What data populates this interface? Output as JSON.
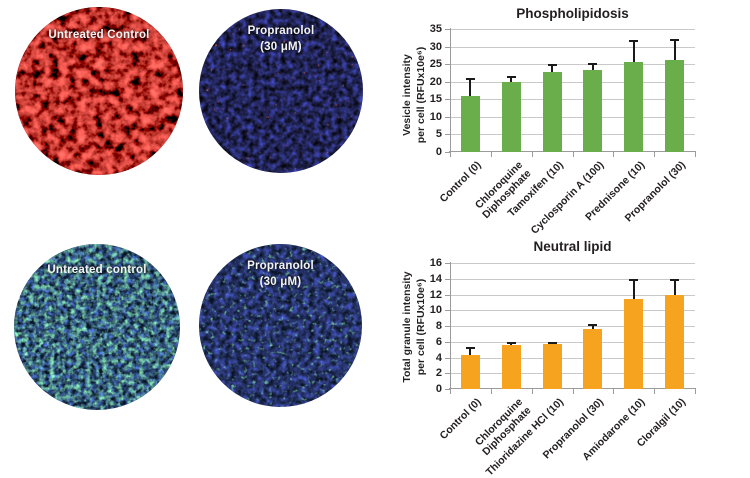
{
  "panels": {
    "phospholipidosis_images": {
      "image1_label": "Untreated Control",
      "image2_label": "Propranolol\n(30 μM)"
    },
    "neutral_lipid_images": {
      "image1_label": "Untreated control",
      "image2_label": "Propranolol\n(30 μM)"
    }
  },
  "chart_data": [
    {
      "type": "bar",
      "title": "Phospholipidosis",
      "ylabel": "Vesicle intensity\nper cell (RFUx10e⁶)",
      "xlabel": "",
      "categories": [
        "Control (0)",
        "Chloroquine\nDiphosphate",
        "Tamoxifen (10)",
        "Cyclosporin A (100)",
        "Prednisone (10)",
        "Propranolol (30)"
      ],
      "values": [
        16,
        20,
        22.8,
        23.3,
        25.6,
        26.3
      ],
      "errors_up": [
        4.9,
        1.3,
        2.1,
        1.8,
        6.1,
        5.6
      ],
      "ylim": [
        0,
        35
      ],
      "ytick_step": 5,
      "yticks": [
        0,
        5,
        10,
        15,
        20,
        25,
        30,
        35
      ],
      "bar_color": "#6aad4b",
      "grid": true,
      "legend": "none"
    },
    {
      "type": "bar",
      "title": "Neutral lipid",
      "ylabel": "Total granule intensity\nper cell (RFUx10e⁶)",
      "xlabel": "",
      "categories": [
        "Control (0)",
        "Chloroquine\nDiphosphate",
        "Thioridazine HCl (10)",
        "Propranolol (30)",
        "Amiodarone (10)",
        "Cloralgil (10)"
      ],
      "values": [
        4.3,
        5.6,
        5.7,
        7.6,
        11.4,
        12.0
      ],
      "errors_up": [
        0.9,
        0.2,
        0.2,
        0.5,
        2.5,
        1.8
      ],
      "ylim": [
        0,
        16
      ],
      "ytick_step": 2,
      "yticks": [
        0,
        2,
        4,
        6,
        8,
        10,
        12,
        14,
        16
      ],
      "bar_color": "#f6a320",
      "grid": true,
      "legend": "none"
    }
  ],
  "colors": {
    "green_bar": "#6aad4b",
    "orange_bar": "#f6a320",
    "gridline": "#c9c9c9",
    "axis": "#9b9b9b",
    "text": "#231f20",
    "error_bar": "#1a1a1a",
    "caption_text": "#f4f4f4"
  }
}
